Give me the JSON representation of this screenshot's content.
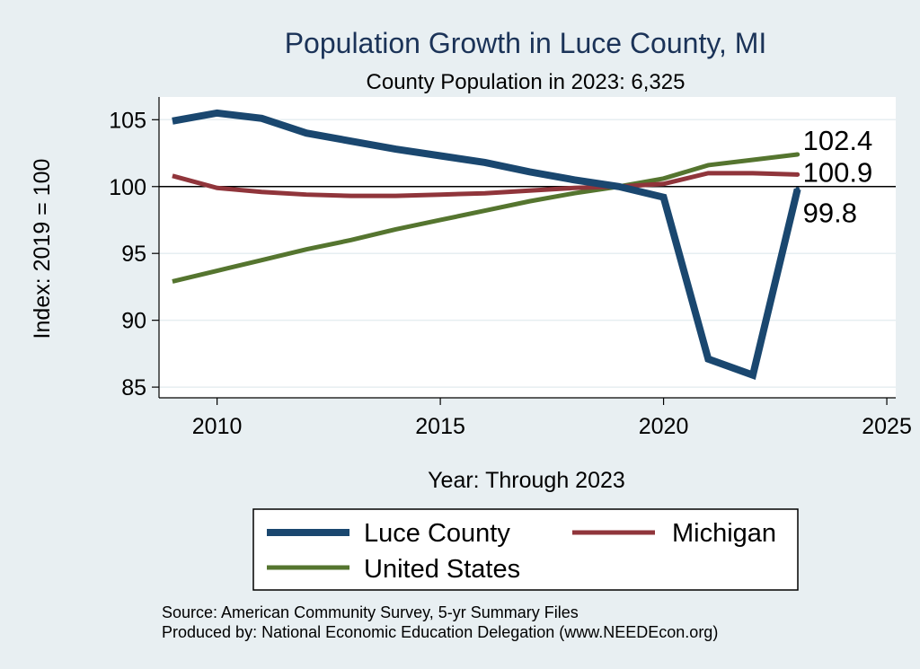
{
  "colors": {
    "background": "#e8eff2",
    "plot_background": "#ffffff",
    "grid": "#e6eef1",
    "luce": "#1a476f",
    "michigan": "#90353b",
    "us": "#55752f",
    "reference_line": "#000000"
  },
  "chart_data": {
    "type": "line",
    "title": "Population Growth in Luce County, MI",
    "subtitle": "County Population in 2023: 6,325",
    "xlabel": "Year: Through 2023",
    "ylabel": "Index: 2019 = 100",
    "xlim": [
      2008.7,
      2025.2
    ],
    "ylim": [
      84.2,
      106.7
    ],
    "xticks": [
      2010,
      2015,
      2020,
      2025
    ],
    "yticks": [
      85,
      90,
      95,
      100,
      105
    ],
    "reference_line_y": 100,
    "grid": true,
    "legend_position": "bottom",
    "series": [
      {
        "name": "Luce  County",
        "color_key": "luce",
        "x": [
          2009,
          2010,
          2011,
          2012,
          2013,
          2014,
          2015,
          2016,
          2017,
          2018,
          2019,
          2020,
          2021,
          2022,
          2023
        ],
        "y": [
          104.9,
          105.5,
          105.1,
          104.0,
          103.4,
          102.8,
          102.3,
          101.8,
          101.1,
          100.5,
          100.0,
          99.2,
          87.1,
          85.9,
          99.8
        ],
        "end_label": "99.8"
      },
      {
        "name": "Michigan",
        "color_key": "michigan",
        "x": [
          2009,
          2010,
          2011,
          2012,
          2013,
          2014,
          2015,
          2016,
          2017,
          2018,
          2019,
          2020,
          2021,
          2022,
          2023
        ],
        "y": [
          100.8,
          99.9,
          99.6,
          99.4,
          99.3,
          99.3,
          99.4,
          99.5,
          99.7,
          99.9,
          100.0,
          100.2,
          101.0,
          101.0,
          100.9
        ],
        "end_label": "100.9"
      },
      {
        "name": "United States",
        "color_key": "us",
        "x": [
          2009,
          2010,
          2011,
          2012,
          2013,
          2014,
          2015,
          2016,
          2017,
          2018,
          2019,
          2020,
          2021,
          2022,
          2023
        ],
        "y": [
          92.9,
          93.7,
          94.5,
          95.3,
          96.0,
          96.8,
          97.5,
          98.2,
          98.9,
          99.5,
          100.0,
          100.6,
          101.6,
          102.0,
          102.4
        ],
        "end_label": "102.4"
      }
    ]
  },
  "legend": {
    "luce": "Luce  County",
    "michigan": "Michigan",
    "us": "United States"
  },
  "source": {
    "line1": "Source: American Community Survey, 5-yr Summary Files",
    "line2": "Produced by: National Economic Education Delegation (www.NEEDEcon.org)"
  }
}
